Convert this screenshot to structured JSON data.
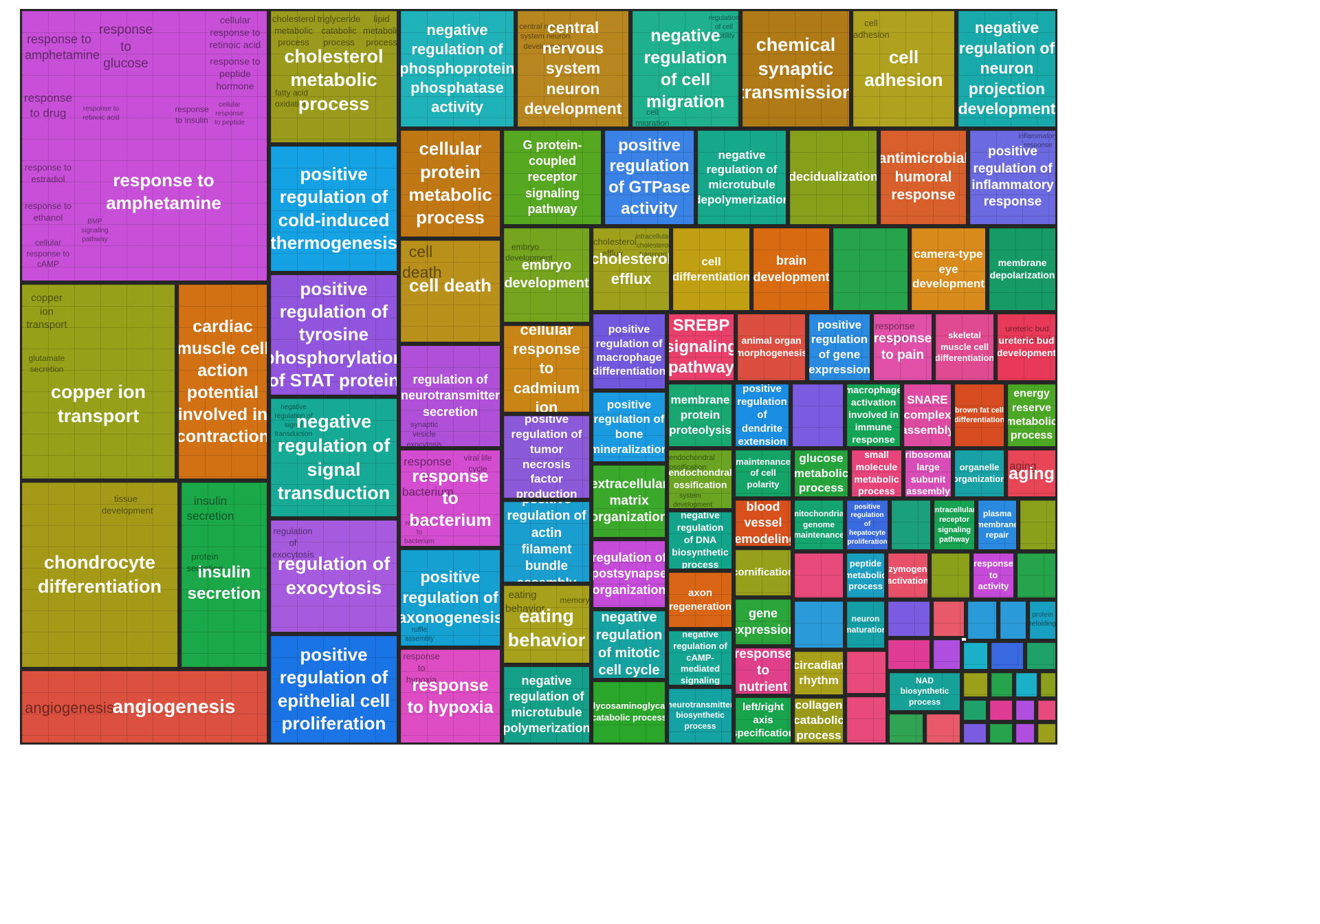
{
  "groups": {
    "g01": {
      "label": "response to amphetamine",
      "color": "#c850d8",
      "subs": [
        "response to amphetamine",
        "response to glucose",
        "cellular response to retinoic acid",
        "response to peptide hormone",
        "response to drug",
        "response to retinoic acid",
        "response to insulin",
        "cellular response to peptide",
        "response to estradiol",
        "response to ethanol",
        "BMP signaling pathway",
        "cellular response to cAMP"
      ]
    },
    "g02": {
      "label": "cholesterol metabolic process",
      "color": "#9a9a1c",
      "subs": [
        "cholesterol metabolic process",
        "triglyceride catabolic process",
        "lipid metabolic process",
        "fatty acid oxidation"
      ]
    },
    "g03": {
      "label": "negative regulation of phosphoprotein phosphatase activity",
      "color": "#1fb2b8",
      "subs": []
    },
    "g04": {
      "label": "central nervous system neuron development",
      "color": "#b8861f",
      "subs": [
        "central nervous system neuron development"
      ]
    },
    "g05": {
      "label": "negative regulation of cell migration",
      "color": "#1fb08e",
      "subs": [
        "regulation of cell motility",
        "cell migration"
      ]
    },
    "g06": {
      "label": "chemical synaptic transmission",
      "color": "#b07a16",
      "subs": []
    },
    "g07": {
      "label": "cell adhesion",
      "color": "#b0a21e",
      "subs": [
        "cell adhesion"
      ]
    },
    "g08": {
      "label": "negative regulation of neuron projection development",
      "color": "#18aaaa",
      "subs": []
    },
    "g09": {
      "label": "positive regulation of cold-induced thermogenesis",
      "color": "#14a2e4",
      "subs": []
    },
    "g10": {
      "label": "cellular protein metabolic process",
      "color": "#c07814",
      "subs": []
    },
    "g11": {
      "label": "G protein-coupled receptor signaling pathway",
      "color": "#56a820",
      "subs": []
    },
    "g12": {
      "label": "positive regulation of GTPase activity",
      "color": "#3a82e6",
      "subs": []
    },
    "g13": {
      "label": "negative regulation of microtubule depolymerization",
      "color": "#16a88a",
      "subs": []
    },
    "g14": {
      "label": "decidualization",
      "color": "#86a01a",
      "subs": []
    },
    "g15": {
      "label": "antimicrobial humoral response",
      "color": "#d8602c",
      "subs": []
    },
    "g16": {
      "label": "positive regulation of inflammatory response",
      "color": "#6c6ae0",
      "subs": [
        "inflammatory response"
      ]
    },
    "g17": {
      "label": "positive regulation of tyrosine phosphorylation of STAT protein",
      "color": "#9256de",
      "subs": []
    },
    "g18": {
      "label": "cell death",
      "color": "#b8901a",
      "subs": [
        "cell death"
      ]
    },
    "g19": {
      "label": "embryo development",
      "color": "#76a41e",
      "subs": [
        "embryo development"
      ]
    },
    "g20": {
      "label": "cholesterol efflux",
      "color": "#a0a01c",
      "subs": [
        "cholesterol efflux",
        "intracellular cholesterol transport"
      ]
    },
    "g21": {
      "label": "cell differentiation",
      "color": "#c0a012",
      "subs": []
    },
    "g22": {
      "label": "brain development",
      "color": "#d86a12",
      "subs": []
    },
    "g23": {
      "label": "camera-type eye development",
      "color": "#d88a1a",
      "subs": []
    },
    "g24": {
      "label": "membrane depolarization",
      "color": "#169a66",
      "subs": []
    },
    "g25": {
      "label": "copper ion transport",
      "color": "#96a018",
      "subs": [
        "copper ion transport",
        "glutamate secretion"
      ]
    },
    "g26": {
      "label": "cardiac muscle cell action potential involved in contraction",
      "color": "#d27014",
      "subs": []
    },
    "g27": {
      "label": "cellular response to cadmium ion",
      "color": "#c88414",
      "subs": []
    },
    "g28": {
      "label": "regulation of neurotransmitter secretion",
      "color": "#b050d8",
      "subs": [
        "synaptic vesicle exocytosis"
      ]
    },
    "g29": {
      "label": "positive regulation of macrophage differentiation",
      "color": "#7058dc",
      "subs": []
    },
    "g30": {
      "label": "SREBP signaling pathway",
      "color": "#e8406a",
      "subs": []
    },
    "g31": {
      "label": "animal organ morphogenesis",
      "color": "#dc4e40",
      "subs": []
    },
    "g32": {
      "label": "positive regulation of gene expression",
      "color": "#2a8ae0",
      "subs": []
    },
    "g33": {
      "label": "response to pain",
      "color": "#e050a8",
      "subs": [
        "response to pain"
      ]
    },
    "g34": {
      "label": "skeletal muscle cell differentiation",
      "color": "#e04a90",
      "subs": []
    },
    "g35": {
      "label": "ureteric bud development",
      "color": "#e83a58",
      "subs": [
        "ureteric bud development"
      ]
    },
    "g36": {
      "label": "negative regulation of signal transduction",
      "color": "#16aa96",
      "subs": [
        "negative regulation of signal transduction"
      ]
    },
    "g37": {
      "label": "positive regulation of tumor necrosis factor production",
      "color": "#8a5ad8",
      "subs": []
    },
    "g38": {
      "label": "positive regulation of bone mineralization",
      "color": "#1a9ae0",
      "subs": []
    },
    "g39": {
      "label": "membrane protein proteolysis",
      "color": "#1aa872",
      "subs": []
    },
    "g40": {
      "label": "positive regulation of dendrite extension",
      "color": "#1a8ee2",
      "subs": []
    },
    "g41": {
      "label": "macrophage activation involved in immune response",
      "color": "#14a456",
      "subs": []
    },
    "g42": {
      "label": "SNARE complex assembly",
      "color": "#de4aa0",
      "subs": []
    },
    "g43": {
      "label": "brown fat cell differentiation",
      "color": "#d84c22",
      "subs": []
    },
    "g44": {
      "label": "energy reserve metabolic process",
      "color": "#4aa824",
      "subs": []
    },
    "g45": {
      "label": "response to bacterium",
      "color": "#d44cd0",
      "subs": [
        "response to bacterium",
        "viral life cycle",
        "response to bacterium"
      ]
    },
    "g46": {
      "label": "endochondral ossification",
      "color": "#6aa422",
      "subs": [
        "endochondral ossification",
        "system development"
      ]
    },
    "g47": {
      "label": "maintenance of cell polarity",
      "color": "#14a468",
      "subs": []
    },
    "g48": {
      "label": "glucose metabolic process",
      "color": "#26a43c",
      "subs": []
    },
    "g49": {
      "label": "small molecule metabolic process",
      "color": "#e8447a",
      "subs": []
    },
    "g50": {
      "label": "ribosomal large subunit assembly",
      "color": "#d84cb8",
      "subs": []
    },
    "g51": {
      "label": "organelle organization",
      "color": "#18a2a6",
      "subs": []
    },
    "g52": {
      "label": "aging",
      "color": "#e84656",
      "subs": [
        "aging"
      ]
    },
    "g53": {
      "label": "chondrocyte differentiation",
      "color": "#a49a18",
      "subs": [
        "tissue development"
      ]
    },
    "g54": {
      "label": "insulin secretion",
      "color": "#1aa848",
      "subs": [
        "insulin secretion",
        "protein secretion"
      ]
    },
    "g55": {
      "label": "regulation of exocytosis",
      "color": "#a65ade",
      "subs": [
        "regulation of exocytosis"
      ]
    },
    "g56": {
      "label": "positive regulation of actin filament bundle assembly",
      "color": "#1a9ed0",
      "subs": []
    },
    "g57": {
      "label": "extracellular matrix organization",
      "color": "#3aa82a",
      "subs": []
    },
    "g58": {
      "label": "negative regulation of DNA biosynthetic process",
      "color": "#12a48a",
      "subs": []
    },
    "g59": {
      "label": "blood vessel remodeling",
      "color": "#d8501c",
      "subs": []
    },
    "g60": {
      "label": "mitochondrial genome maintenance",
      "color": "#14a470",
      "subs": []
    },
    "g61": {
      "label": "positive regulation of hepatocyte proliferation",
      "color": "#3a6ae0",
      "subs": []
    },
    "g62": {
      "label": "intracellular receptor signaling pathway",
      "color": "#16a452",
      "subs": []
    },
    "g63": {
      "label": "plasma membrane repair",
      "color": "#2a8ae0",
      "subs": []
    },
    "g64": {
      "label": "positive regulation of axonogenesis",
      "color": "#14a0d0",
      "subs": [
        "ruffle assembly"
      ]
    },
    "g65": {
      "label": "eating behavior",
      "color": "#a6a01a",
      "subs": [
        "eating behavior",
        "memory"
      ]
    },
    "g66": {
      "label": "regulation of postsynapse organization",
      "color": "#c44cd8",
      "subs": []
    },
    "g67": {
      "label": "axon regeneration",
      "color": "#d86416",
      "subs": []
    },
    "g68": {
      "label": "cornification",
      "color": "#96a01a",
      "subs": []
    },
    "g69": {
      "label": "peptide metabolic process",
      "color": "#1a9ec2",
      "subs": []
    },
    "g70": {
      "label": "zymogen activation",
      "color": "#e8506a",
      "subs": []
    },
    "g71": {
      "label": "response to activity",
      "color": "#c64ad8",
      "subs": []
    },
    "g72": {
      "label": "negative regulation of mitotic cell cycle",
      "color": "#16a2a0",
      "subs": []
    },
    "g73": {
      "label": "negative regulation of cAMP-mediated signaling",
      "color": "#14a492",
      "subs": []
    },
    "g74": {
      "label": "gene expression",
      "color": "#2aa63a",
      "subs": []
    },
    "g75": {
      "label": "neuron maturation",
      "color": "#149ea6",
      "subs": []
    },
    "g76": {
      "label": "protein refolding",
      "color": "#18a0c0",
      "subs": []
    },
    "g77": {
      "label": "angiogenesis",
      "color": "#dc5040",
      "subs": [
        "angiogenesis"
      ]
    },
    "g78": {
      "label": "positive regulation of epithelial cell proliferation",
      "color": "#1a74e6",
      "subs": []
    },
    "g79": {
      "label": "response to hypoxia",
      "color": "#de4cc4",
      "subs": [
        "response to hypoxia"
      ]
    },
    "g80": {
      "label": "negative regulation of microtubule polymerization",
      "color": "#14a088",
      "subs": []
    },
    "g81": {
      "label": "glycosaminoglycan catabolic process",
      "color": "#2aa62a",
      "subs": []
    },
    "g82": {
      "label": "neurotransmitter biosynthetic process",
      "color": "#14a2a2",
      "subs": []
    },
    "g83": {
      "label": "response to nutrient",
      "color": "#e0408a",
      "subs": []
    },
    "g84": {
      "label": "left/right axis specification",
      "color": "#18a44a",
      "subs": []
    },
    "g85": {
      "label": "circadian rhythm",
      "color": "#a8a01a",
      "subs": []
    },
    "g86": {
      "label": "collagen catabolic process",
      "color": "#9a9a1a",
      "subs": []
    },
    "g87": {
      "label": "NAD biosynthetic process",
      "color": "#16a298",
      "subs": []
    }
  },
  "fillers": [
    "#26a44c",
    "#7a5ce0",
    "#8aa01a",
    "#1aa07a",
    "#e84a7c",
    "#2a9ad8",
    "#9aa01a",
    "#e85a6a",
    "#3a6ae0",
    "#e03c96",
    "#30a452",
    "#b04ee0",
    "#1ab0c8",
    "#1ea26a"
  ]
}
